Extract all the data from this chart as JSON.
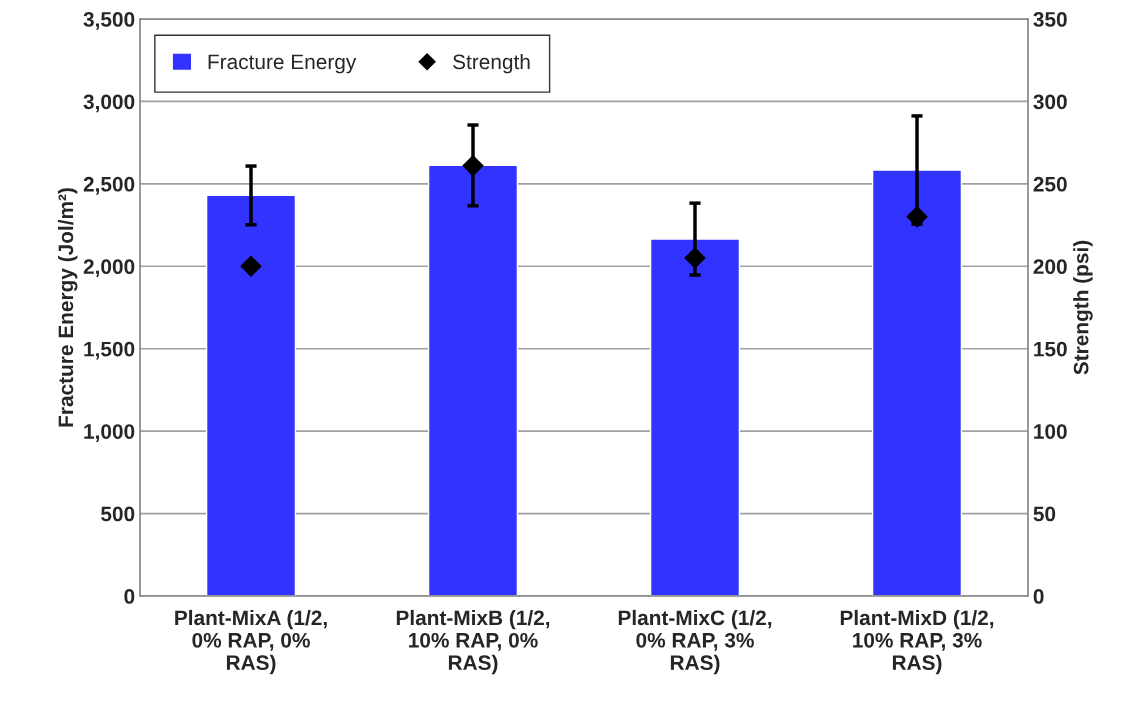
{
  "chart_data": {
    "type": "bar",
    "categories": [
      "Plant-MixA (1/2,\n0% RAP, 0%\nRAS)",
      "Plant-MixB (1/2,\n10% RAP, 0%\nRAS)",
      "Plant-MixC (1/2,\n0% RAP, 3%\nRAS)",
      "Plant-MixD (1/2,\n10% RAP, 3%\nRAS)"
    ],
    "series": [
      {
        "name": "Fracture Energy",
        "color": "#3333ff",
        "values": [
          2430,
          2612,
          2165,
          2584
        ],
        "errors": [
          178,
          245,
          218,
          328
        ]
      },
      {
        "name": "Strength",
        "type": "scatter",
        "axis": "y2",
        "color": "#000000",
        "values": [
          200,
          261,
          205,
          230
        ]
      }
    ],
    "ylabel": "Fracture Energy (Jol/m²)",
    "y2label": "Strength (psi)",
    "ylim": [
      0,
      3500
    ],
    "yticks": [
      {
        "value": 0,
        "label": "0"
      },
      {
        "value": 500,
        "label": "500"
      },
      {
        "value": 1000,
        "label": "1,000"
      },
      {
        "value": 1500,
        "label": "1,500"
      },
      {
        "value": 2000,
        "label": "2,000"
      },
      {
        "value": 2500,
        "label": "2,500"
      },
      {
        "value": 3000,
        "label": "3,000"
      },
      {
        "value": 3500,
        "label": "3,500"
      }
    ],
    "y2lim": [
      0,
      350
    ],
    "y2ticks": [
      0,
      50,
      100,
      150,
      200,
      250,
      300,
      350
    ],
    "grid": "y",
    "legend": "top left",
    "marker": "diamond"
  }
}
